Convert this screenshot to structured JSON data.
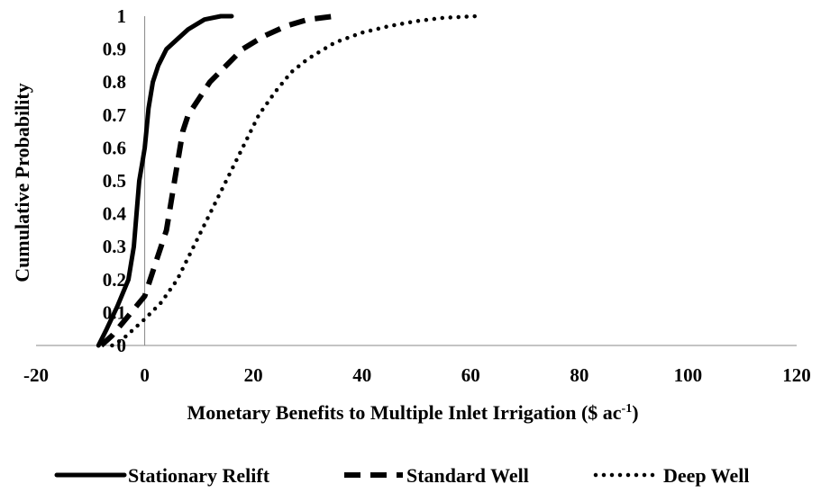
{
  "chart_data": {
    "type": "line",
    "title": "",
    "xlabel": "Monetary Benefits to Multiple Inlet Irrigation ($ ac",
    "xlabel_superscript": "-1",
    "xlabel_suffix": ")",
    "ylabel": "Cumulative Probability",
    "xlim": [
      -20,
      120
    ],
    "ylim": [
      0,
      1
    ],
    "x_ticks": [
      "-20",
      "0",
      "20",
      "40",
      "60",
      "80",
      "100",
      "120"
    ],
    "y_ticks": [
      "0",
      "0.1",
      "0.2",
      "0.3",
      "0.4",
      "0.5",
      "0.6",
      "0.7",
      "0.8",
      "0.9",
      "1"
    ],
    "grid": false,
    "legend_position": "bottom",
    "series": [
      {
        "name": "Stationary Relift",
        "style": "solid",
        "x": [
          -8.5,
          -7,
          -5,
          -3,
          -2,
          -1.5,
          -1,
          -0.5,
          0,
          0.3,
          0.7,
          1.5,
          2.5,
          4,
          6,
          8,
          11,
          14,
          16
        ],
        "y": [
          0,
          0.05,
          0.12,
          0.2,
          0.3,
          0.4,
          0.5,
          0.55,
          0.6,
          0.65,
          0.72,
          0.8,
          0.85,
          0.9,
          0.93,
          0.96,
          0.99,
          1.0,
          1.0
        ]
      },
      {
        "name": "Standard Well",
        "style": "dashed",
        "x": [
          -8,
          -6,
          -3,
          0,
          2,
          4,
          5,
          6,
          7,
          8,
          10,
          12,
          15,
          18,
          22,
          26,
          30,
          35
        ],
        "y": [
          0,
          0.03,
          0.09,
          0.15,
          0.25,
          0.35,
          0.45,
          0.55,
          0.65,
          0.7,
          0.75,
          0.8,
          0.85,
          0.9,
          0.94,
          0.97,
          0.99,
          1.0
        ]
      },
      {
        "name": "Deep Well",
        "style": "dotted",
        "x": [
          -6,
          -4,
          -2,
          0,
          3,
          6,
          9,
          12,
          15,
          18,
          21,
          24,
          27,
          30,
          35,
          40,
          45,
          50,
          55,
          61
        ],
        "y": [
          0,
          0.02,
          0.05,
          0.08,
          0.13,
          0.2,
          0.3,
          0.4,
          0.5,
          0.6,
          0.7,
          0.77,
          0.83,
          0.87,
          0.92,
          0.95,
          0.97,
          0.985,
          0.995,
          1.0
        ]
      }
    ]
  }
}
